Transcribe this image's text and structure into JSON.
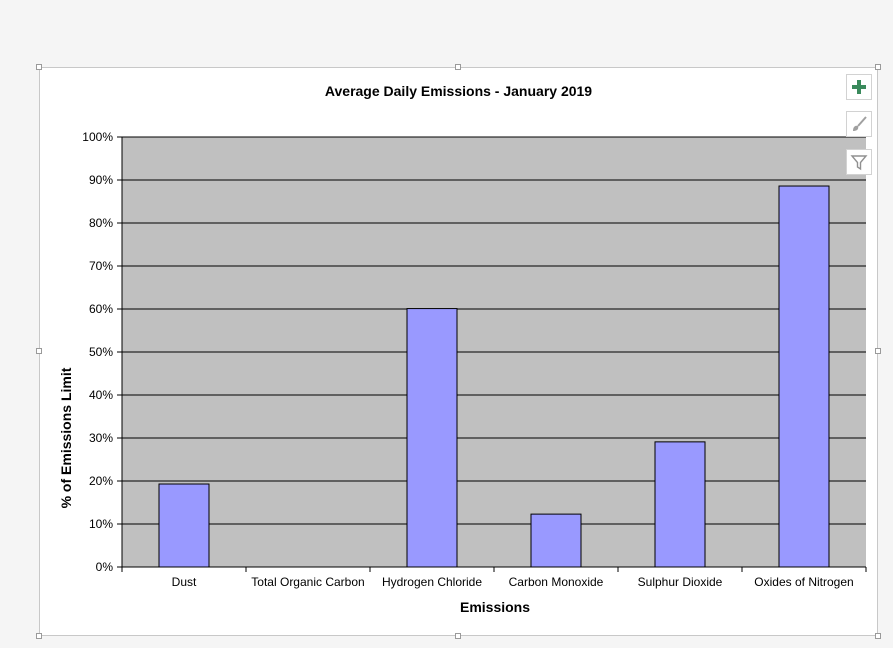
{
  "chart_data": {
    "type": "bar",
    "title": "Average Daily Emissions - January 2019",
    "xlabel": "Emissions",
    "ylabel": "% of Emissions Limit",
    "categories": [
      "Dust",
      "Total Organic Carbon",
      "Hydrogen Chloride",
      "Carbon Monoxide",
      "Sulphur Dioxide",
      "Oxides of Nitrogen"
    ],
    "values": [
      19.3,
      0,
      60.1,
      12.3,
      29.1,
      88.6
    ],
    "ylim": [
      0,
      100
    ],
    "yticks": [
      0,
      10,
      20,
      30,
      40,
      50,
      60,
      70,
      80,
      90,
      100
    ],
    "ytick_labels": [
      "0%",
      "10%",
      "20%",
      "30%",
      "40%",
      "50%",
      "60%",
      "70%",
      "80%",
      "90%",
      "100%"
    ],
    "grid": true,
    "legend": "none",
    "colors": {
      "bar": "#9999ff",
      "plot_background": "#c0c0c0",
      "gridline": "#000000"
    }
  },
  "toolbar": {
    "buttons": [
      {
        "name": "chart-elements-button",
        "icon": "plus-icon"
      },
      {
        "name": "chart-styles-button",
        "icon": "paintbrush-icon"
      },
      {
        "name": "chart-filters-button",
        "icon": "filter-icon"
      }
    ],
    "plus_color": "#3a8a5c"
  }
}
